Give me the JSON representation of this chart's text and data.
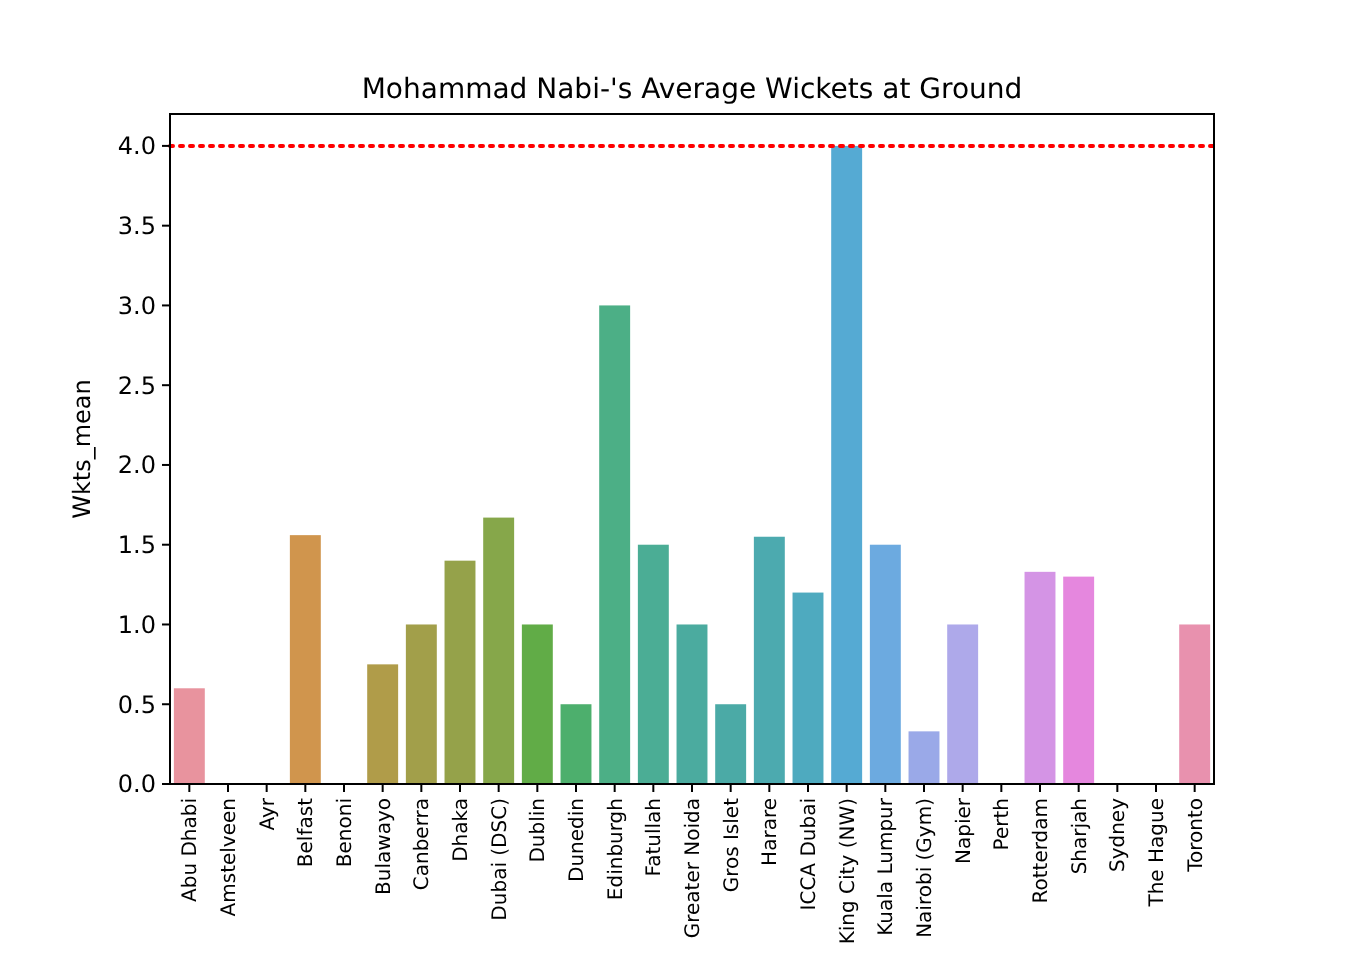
{
  "chart_data": {
    "type": "bar",
    "title": "Mohammad Nabi-'s Average Wickets at Ground",
    "ylabel": "Wkts_mean",
    "categories": [
      "Abu Dhabi",
      "Amstelveen",
      "Ayr",
      "Belfast",
      "Benoni",
      "Bulawayo",
      "Canberra",
      "Dhaka",
      "Dubai (DSC)",
      "Dublin",
      "Dunedin",
      "Edinburgh",
      "Fatullah",
      "Greater Noida",
      "Gros Islet",
      "Harare",
      "ICCA Dubai",
      "King City (NW)",
      "Kuala Lumpur",
      "Nairobi (Gym)",
      "Napier",
      "Perth",
      "Rotterdam",
      "Sharjah",
      "Sydney",
      "The Hague",
      "Toronto"
    ],
    "values": [
      0.6,
      0,
      0,
      1.56,
      0,
      0.75,
      1.0,
      1.4,
      1.67,
      1.0,
      0.5,
      3.0,
      1.5,
      1.0,
      0.5,
      1.55,
      1.2,
      4.0,
      1.5,
      0.33,
      1.0,
      0,
      1.33,
      1.3,
      0,
      0,
      1.0
    ],
    "colors": [
      "#e8939e",
      "#e49a7c",
      "#dc9e5c",
      "#d0954d",
      "#c09a4a",
      "#b09c49",
      "#a29f4a",
      "#95a24a",
      "#86a74a",
      "#61ac47",
      "#4daf6d",
      "#4caf86",
      "#4bad95",
      "#4bab9f",
      "#4baaa6",
      "#4caaaf",
      "#4eaabf",
      "#55aad3",
      "#6caae0",
      "#9aa9e8",
      "#aea9ea",
      "#c19fe8",
      "#d494e5",
      "#e587de",
      "#e88bc9",
      "#e88cb5",
      "#e891ae"
    ],
    "ylim": [
      0,
      4.2
    ],
    "yticks": [
      {
        "value": 0,
        "label": "0.0"
      },
      {
        "value": 0.5,
        "label": "0.5"
      },
      {
        "value": 1,
        "label": "1.0"
      },
      {
        "value": 1.5,
        "label": "1.5"
      },
      {
        "value": 2,
        "label": "2.0"
      },
      {
        "value": 2.5,
        "label": "2.5"
      },
      {
        "value": 3,
        "label": "3.0"
      },
      {
        "value": 3.5,
        "label": "3.5"
      },
      {
        "value": 4,
        "label": "4.0"
      }
    ],
    "ref_lines": [
      {
        "axis": "y",
        "value": 4,
        "color": "#ff0000",
        "line_style": "dotted"
      }
    ]
  }
}
